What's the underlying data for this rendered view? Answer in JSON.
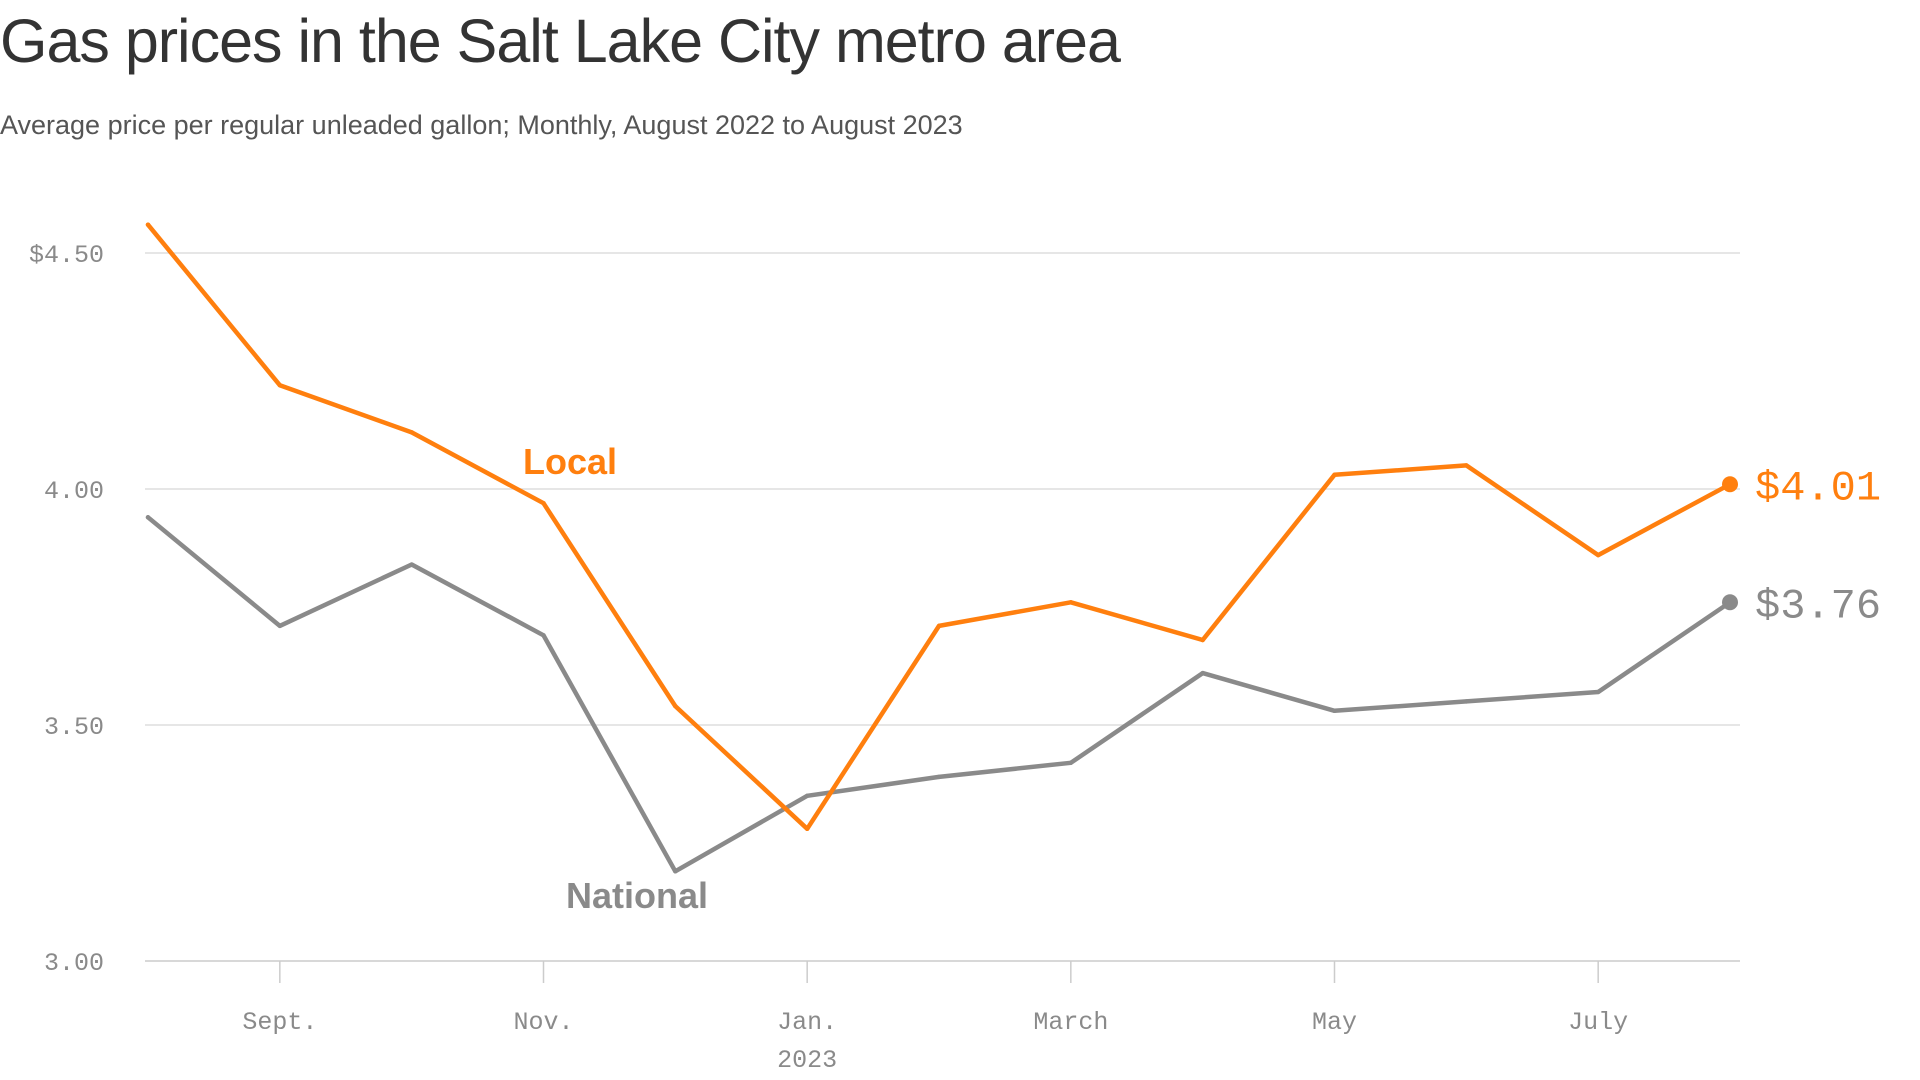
{
  "title": "Gas prices in the Salt Lake City metro area",
  "subtitle": "Average price per regular unleaded gallon; Monthly, August 2022 to August 2023",
  "colors": {
    "local": "#ff7f0e",
    "national": "#8a8a8a",
    "grid": "#dddddd",
    "axis": "#cccccc"
  },
  "chart_data": {
    "type": "line",
    "title": "Gas prices in the Salt Lake City metro area",
    "subtitle": "Average price per regular unleaded gallon; Monthly, August 2022 to August 2023",
    "x": [
      "2022-08",
      "2022-09",
      "2022-10",
      "2022-11",
      "2022-12",
      "2023-01",
      "2023-02",
      "2023-03",
      "2023-04",
      "2023-05",
      "2023-06",
      "2023-07",
      "2023-08"
    ],
    "series": [
      {
        "name": "Local",
        "color": "#ff7f0e",
        "values": [
          4.56,
          4.22,
          4.12,
          3.97,
          3.54,
          3.28,
          3.71,
          3.76,
          3.68,
          4.03,
          4.05,
          3.86,
          4.01
        ],
        "end_label": "$4.01"
      },
      {
        "name": "National",
        "color": "#8a8a8a",
        "values": [
          3.94,
          3.71,
          3.84,
          3.69,
          3.19,
          3.35,
          3.39,
          3.42,
          3.61,
          3.53,
          3.55,
          3.57,
          3.76
        ],
        "end_label": "$3.76"
      }
    ],
    "ylim": [
      3.0,
      4.5
    ],
    "y_ticks": [
      {
        "value": 3.0,
        "label": "3.00"
      },
      {
        "value": 3.5,
        "label": "3.50"
      },
      {
        "value": 4.0,
        "label": "4.00"
      },
      {
        "value": 4.5,
        "label": "$4.50"
      }
    ],
    "x_ticks": [
      {
        "x": "2022-09",
        "label": "Sept."
      },
      {
        "x": "2022-11",
        "label": "Nov."
      },
      {
        "x": "2023-01",
        "label": "Jan."
      },
      {
        "x": "2023-03",
        "label": "March"
      },
      {
        "x": "2023-05",
        "label": "May"
      },
      {
        "x": "2023-07",
        "label": "July"
      }
    ],
    "year_label": {
      "x": "2023-01",
      "label": "2023"
    },
    "xlabel": "",
    "ylabel": "",
    "grid": "horizontal",
    "legend": "inline labels on lines"
  }
}
